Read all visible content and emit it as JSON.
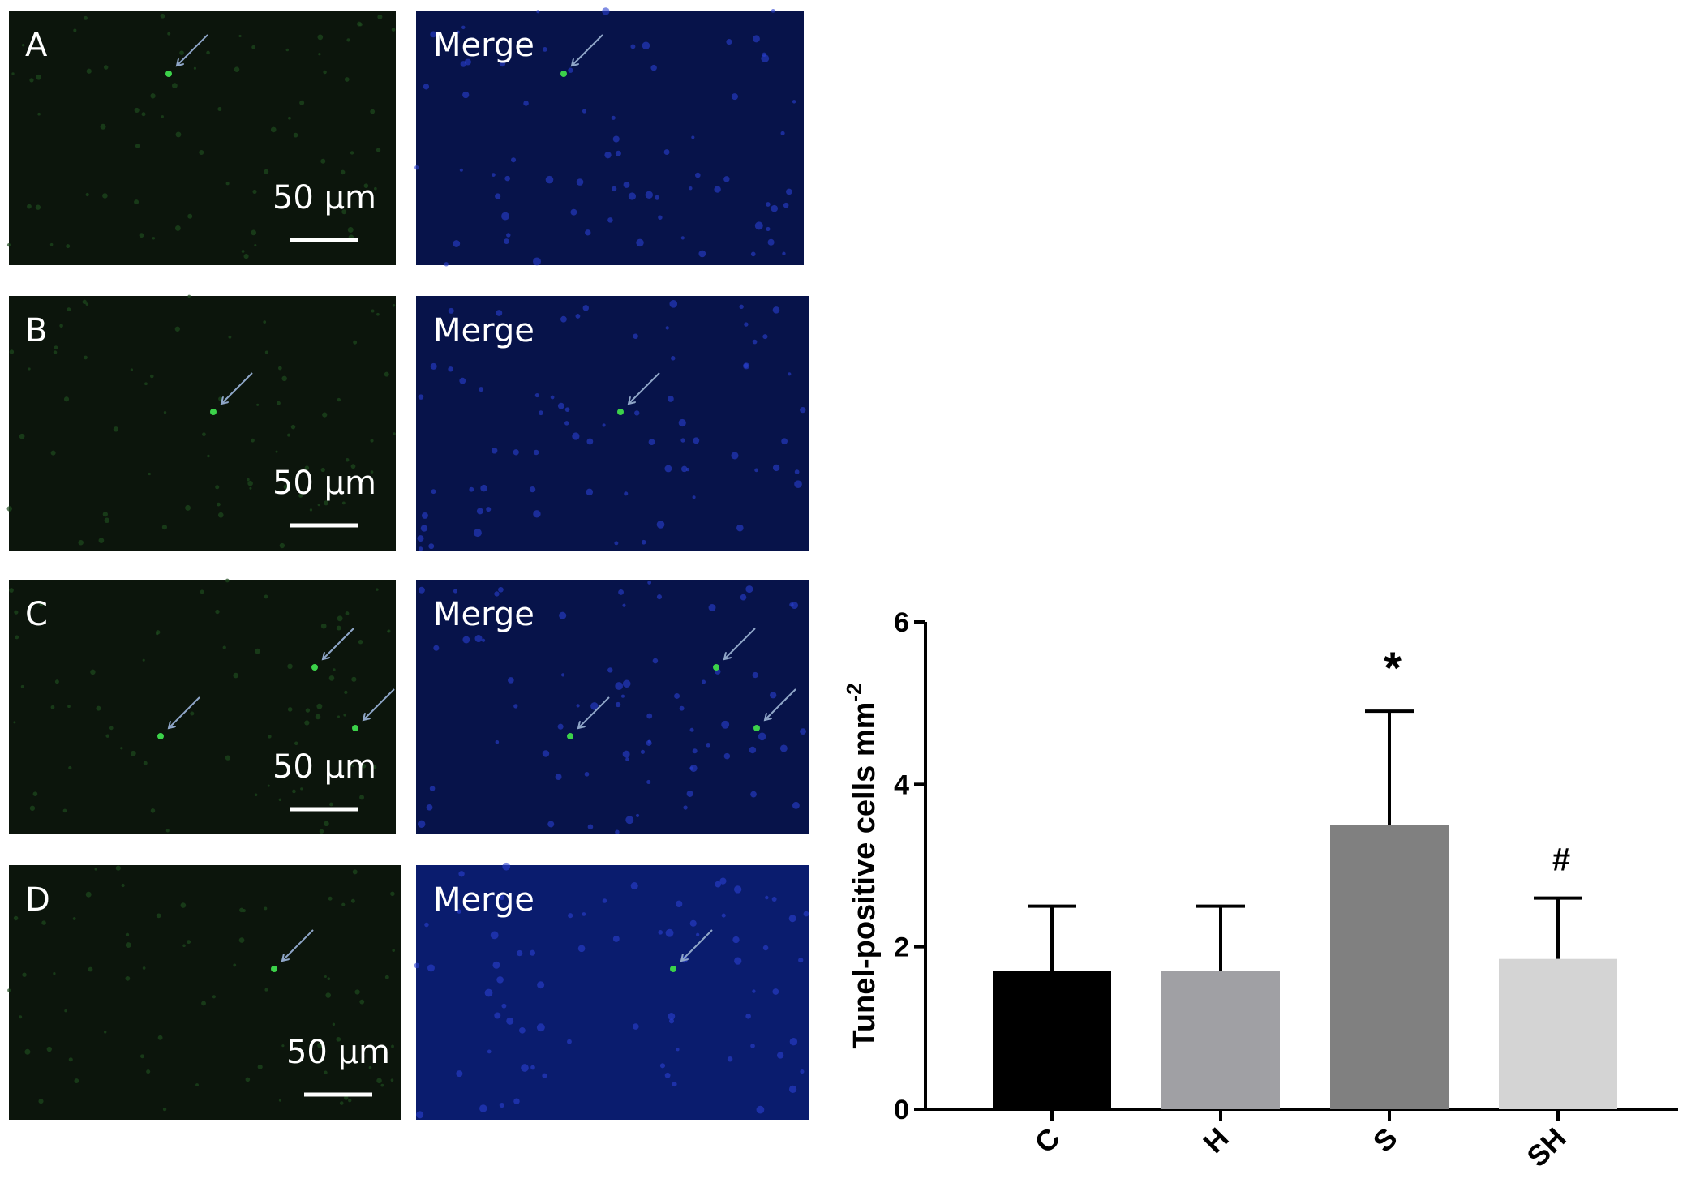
{
  "panels": [
    {
      "label": "A",
      "merge_label": "Merge",
      "scale_bar": "50 µm"
    },
    {
      "label": "B",
      "merge_label": "Merge",
      "scale_bar": "50 µm"
    },
    {
      "label": "C",
      "merge_label": "Merge",
      "scale_bar": "50 µm"
    },
    {
      "label": "D",
      "merge_label": "Merge",
      "scale_bar": "50 µm"
    }
  ],
  "chart_data": {
    "type": "bar",
    "ylabel": {
      "text": "Tunel-positive cells mm",
      "superscript": "-2"
    },
    "categories": [
      "C",
      "H",
      "S",
      "SH"
    ],
    "values": [
      1.7,
      1.7,
      3.5,
      1.85
    ],
    "error": [
      0.8,
      0.8,
      1.4,
      0.75
    ],
    "colors": [
      "#000000",
      "#a0a0a4",
      "#808080",
      "#d4d4d4"
    ],
    "annotations": [
      null,
      null,
      "*",
      "#"
    ],
    "ylim": [
      0,
      6
    ],
    "yticks": [
      0,
      2,
      4,
      6
    ]
  }
}
